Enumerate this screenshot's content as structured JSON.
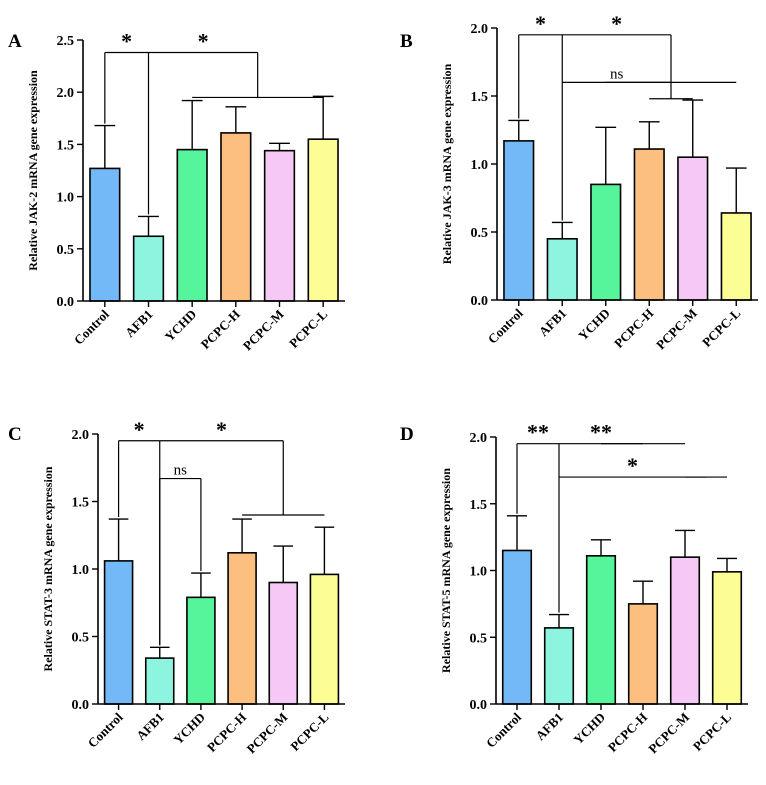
{
  "chart_data": [
    {
      "type": "bar",
      "panel": "A",
      "ylabel": "Relative JAK-2 mRNA gene expression",
      "ylim": [
        0,
        2.5
      ],
      "yticks": [
        "0.0",
        "0.5",
        "1.0",
        "1.5",
        "2.0",
        "2.5"
      ],
      "categories": [
        "Control",
        "AFB1",
        "YCHD",
        "PCPC-H",
        "PCPC-M",
        "PCPC-L"
      ],
      "values": [
        1.27,
        0.62,
        1.45,
        1.61,
        1.44,
        1.55
      ],
      "errors": [
        0.41,
        0.19,
        0.47,
        0.25,
        0.07,
        0.41
      ],
      "colors": [
        "#74b9f7",
        "#8df5df",
        "#57f59b",
        "#fdbf7f",
        "#f5c8f5",
        "#fdfd96"
      ],
      "annotations": [
        {
          "label": "*",
          "from": 0,
          "to": 1,
          "y": 2.38
        },
        {
          "label": "*",
          "from": 1,
          "to_group": [
            2,
            5
          ],
          "y": 2.38,
          "group_y": 1.95
        }
      ]
    },
    {
      "type": "bar",
      "panel": "B",
      "ylabel": "Relative JAK-3 mRNA gene expression",
      "ylim": [
        0,
        2.0
      ],
      "yticks": [
        "0.0",
        "0.5",
        "1.0",
        "1.5",
        "2.0"
      ],
      "categories": [
        "Control",
        "AFB1",
        "YCHD",
        "PCPC-H",
        "PCPC-M",
        "PCPC-L"
      ],
      "values": [
        1.17,
        0.45,
        0.85,
        1.11,
        1.05,
        0.64
      ],
      "errors": [
        0.15,
        0.12,
        0.42,
        0.2,
        0.42,
        0.33
      ],
      "colors": [
        "#74b9f7",
        "#8df5df",
        "#57f59b",
        "#fdbf7f",
        "#f5c8f5",
        "#fdfd96"
      ],
      "annotations": [
        {
          "label": "*",
          "from": 0,
          "to": 1,
          "y": 1.95
        },
        {
          "label": "*",
          "from": 1,
          "to_group": [
            3,
            4
          ],
          "y": 1.95,
          "group_y": 1.48
        },
        {
          "label": "ns",
          "from": 1,
          "to_group": [
            2,
            5
          ],
          "y": 1.6,
          "group_y": 1.6
        }
      ]
    },
    {
      "type": "bar",
      "panel": "C",
      "ylabel": "Relative STAT-3 mRNA gene expression",
      "ylim": [
        0,
        2.0
      ],
      "yticks": [
        "0.0",
        "0.5",
        "1.0",
        "1.5",
        "2.0"
      ],
      "categories": [
        "Control",
        "AFB1",
        "YCHD",
        "PCPC-H",
        "PCPC-M",
        "PCPC-L"
      ],
      "values": [
        1.06,
        0.34,
        0.79,
        1.12,
        0.9,
        0.96
      ],
      "errors": [
        0.31,
        0.08,
        0.18,
        0.25,
        0.27,
        0.35
      ],
      "colors": [
        "#74b9f7",
        "#8df5df",
        "#57f59b",
        "#fdbf7f",
        "#f5c8f5",
        "#fdfd96"
      ],
      "annotations": [
        {
          "label": "*",
          "from": 0,
          "to": 1,
          "y": 1.95
        },
        {
          "label": "*",
          "from": 1,
          "to_group": [
            3,
            5
          ],
          "y": 1.95,
          "group_y": 1.4
        },
        {
          "label": "ns",
          "from": 1,
          "to": 2,
          "y": 1.67
        }
      ]
    },
    {
      "type": "bar",
      "panel": "D",
      "ylabel": "Relative STAT-5 mRNA gene expression",
      "ylim": [
        0,
        2.0
      ],
      "yticks": [
        "0.0",
        "0.5",
        "1.0",
        "1.5",
        "2.0"
      ],
      "categories": [
        "Control",
        "AFB1",
        "YCHD",
        "PCPC-H",
        "PCPC-M",
        "PCPC-L"
      ],
      "values": [
        1.15,
        0.57,
        1.11,
        0.75,
        1.1,
        0.99
      ],
      "errors": [
        0.26,
        0.1,
        0.12,
        0.17,
        0.2,
        0.1
      ],
      "colors": [
        "#74b9f7",
        "#8df5df",
        "#57f59b",
        "#fdbf7f",
        "#f5c8f5",
        "#fdfd96"
      ],
      "annotations": [
        {
          "label": "**",
          "from": 0,
          "to": 1,
          "y": 1.95
        },
        {
          "label": "**",
          "from": 1,
          "to_group": [
            2,
            4
          ],
          "y": 1.95,
          "group_y": 1.95
        },
        {
          "label": "*",
          "from": 1,
          "to_group": [
            4,
            5
          ],
          "y": 1.7,
          "group_y": 1.7
        }
      ]
    }
  ]
}
